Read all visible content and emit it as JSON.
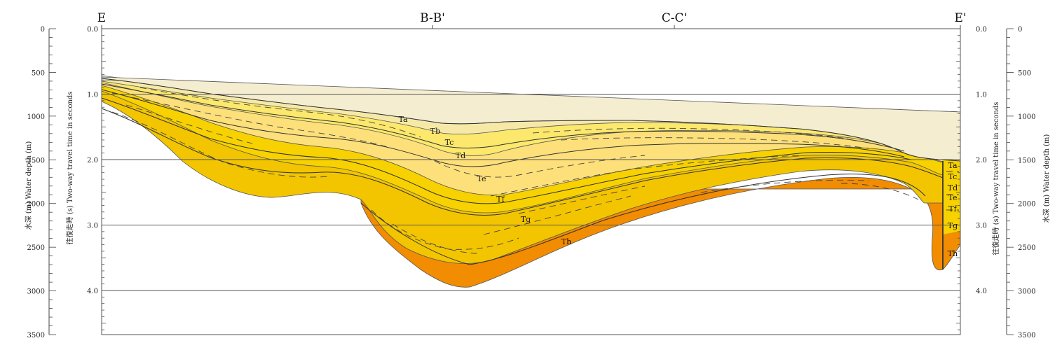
{
  "locations": [
    "E",
    "B-B'",
    "C-C'",
    "E'"
  ],
  "depth_axis": {
    "title": "水深 (m)   Water depth (m)",
    "ticks": [
      "0",
      "500",
      "1000",
      "1500",
      "2000",
      "2500",
      "3000",
      "3500"
    ]
  },
  "time_axis": {
    "title": "往復走時 (s)  Two-way travel time in seconds",
    "ticks": [
      "0.0",
      "1.0",
      "2.0",
      "3.0",
      "4.0"
    ]
  },
  "units": [
    "Ta",
    "Tb",
    "Tc",
    "Td",
    "Te",
    "Tf",
    "Tg",
    "Th"
  ],
  "east_units": [
    "Ta",
    "Tc",
    "Td",
    "Te",
    "Tf",
    "Tg",
    "Th"
  ],
  "colors": {
    "water_fill": "#dfe6ec",
    "ta": "#f4edd0",
    "tb": "#f6e9a8",
    "tc_td": "#fbe86c",
    "te": "#fde07a",
    "tf": "#f7d200",
    "tg": "#f2c500",
    "th": "#f28c00",
    "line": "#333333"
  }
}
